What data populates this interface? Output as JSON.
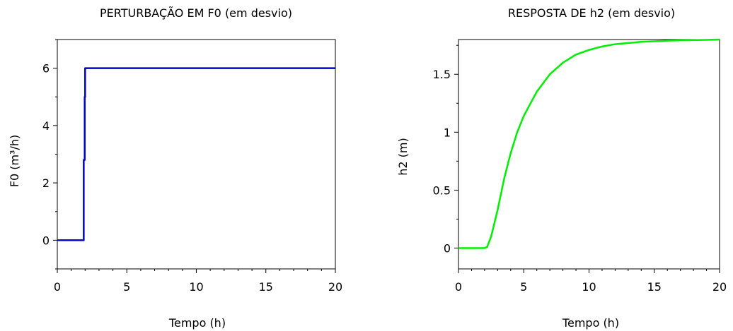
{
  "chart_data": [
    {
      "type": "line",
      "title": "PERTURBAÇÃO EM F0 (em desvio)",
      "xlabel": "Tempo (h)",
      "ylabel": "F0 (m³/h)",
      "xlim": [
        0,
        20
      ],
      "ylim": [
        -1,
        7
      ],
      "xticks": [
        0,
        5,
        10,
        15,
        20
      ],
      "xtick_labels": [
        "0",
        "5",
        "10",
        "15",
        "20"
      ],
      "yticks": [
        0,
        2,
        4,
        6
      ],
      "ytick_labels": [
        "0",
        "2",
        "4",
        "6"
      ],
      "grid": false,
      "series": [
        {
          "color": "#0000cc",
          "x": [
            0,
            1.9,
            1.9,
            1.97,
            1.97,
            2.0,
            2.0,
            20
          ],
          "y": [
            0,
            0,
            2.8,
            2.8,
            5.0,
            5.0,
            6.0,
            6.0
          ]
        }
      ]
    },
    {
      "type": "line",
      "title": "RESPOSTA DE h2 (em desvio)",
      "xlabel": "Tempo (h)",
      "ylabel": "h2 (m)",
      "xlim": [
        0,
        20
      ],
      "ylim": [
        -0.18,
        1.8
      ],
      "xticks": [
        0,
        5,
        10,
        15,
        20
      ],
      "xtick_labels": [
        "0",
        "5",
        "10",
        "15",
        "20"
      ],
      "yticks": [
        0,
        0.5,
        1,
        1.5
      ],
      "ytick_labels": [
        "0",
        "0.5",
        "1",
        "1.5"
      ],
      "grid": false,
      "series": [
        {
          "color": "#00ee00",
          "x": [
            0,
            1,
            2,
            2.2,
            2.5,
            3,
            3.5,
            4,
            4.5,
            5,
            6,
            7,
            8,
            9,
            10,
            11,
            12,
            13,
            14,
            15,
            16,
            17,
            18,
            19,
            20
          ],
          "y": [
            0,
            0,
            0,
            0.01,
            0.1,
            0.33,
            0.6,
            0.82,
            1.0,
            1.14,
            1.35,
            1.5,
            1.6,
            1.67,
            1.71,
            1.74,
            1.76,
            1.77,
            1.78,
            1.785,
            1.79,
            1.793,
            1.795,
            1.797,
            1.8
          ]
        }
      ]
    }
  ]
}
